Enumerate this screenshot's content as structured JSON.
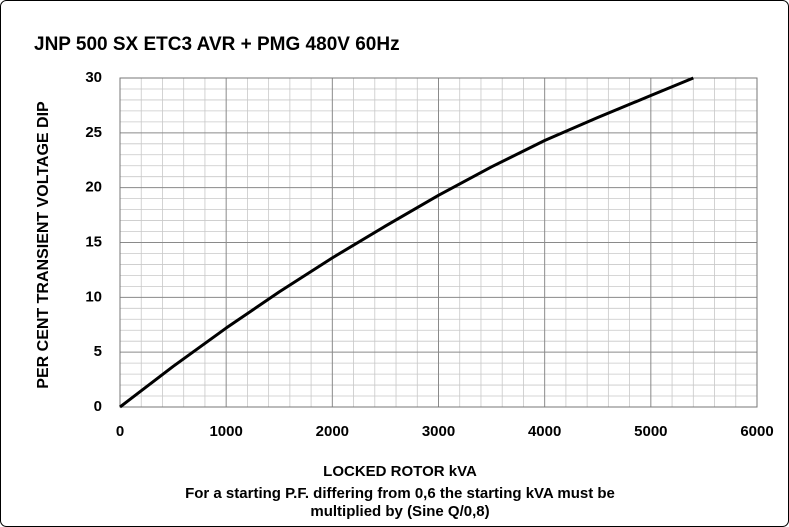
{
  "chart_data": {
    "type": "line",
    "title": "JNP 500 SX  ETC3 AVR + PMG 480V 60Hz",
    "x_label": "LOCKED ROTOR kVA",
    "y_label": "PER CENT TRANSIENT VOLTAGE DIP",
    "note": [
      "For a starting P.F. differing from 0,6 the starting kVA must be",
      "multiplied by (Sine Q/0,8)"
    ],
    "x": [
      0,
      500,
      1000,
      1500,
      2000,
      2500,
      3000,
      3500,
      4000,
      4500,
      5000,
      5400
    ],
    "series": [
      {
        "name": "Voltage dip",
        "color": "#000000",
        "values": [
          0,
          3.7,
          7.2,
          10.5,
          13.6,
          16.5,
          19.3,
          21.9,
          24.3,
          26.4,
          28.4,
          30
        ]
      }
    ],
    "xlim": [
      0,
      6000
    ],
    "xticks": [
      0,
      1000,
      2000,
      3000,
      4000,
      5000,
      6000
    ],
    "ylim": [
      0,
      30
    ],
    "yticks": [
      0,
      5,
      10,
      15,
      20,
      25,
      30
    ],
    "grid": true,
    "minor_grid": 5
  }
}
